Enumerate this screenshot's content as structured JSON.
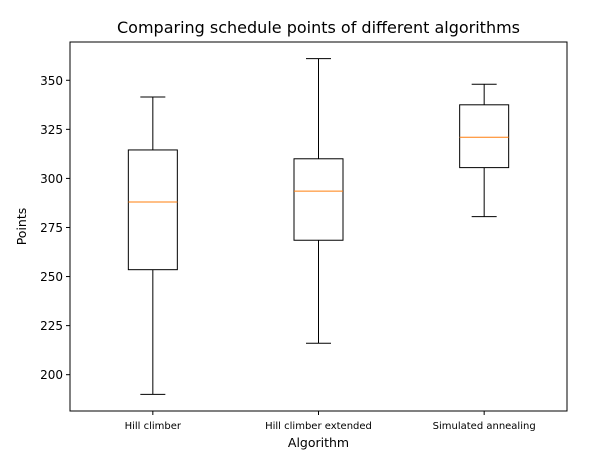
{
  "chart_data": {
    "type": "boxplot",
    "title": "Comparing schedule points of different algorithms",
    "xlabel": "Algorithm",
    "ylabel": "Points",
    "ylim": [
      181.5,
      369.5
    ],
    "yticks": [
      200,
      225,
      250,
      275,
      300,
      325,
      350
    ],
    "grid": false,
    "categories": [
      "Hill climber",
      "Hill climber extended",
      "Simulated annealing"
    ],
    "boxes": [
      {
        "category": "Hill climber",
        "whisker_low": 190,
        "q1": 253.5,
        "median": 288,
        "q3": 314.5,
        "whisker_high": 341.5
      },
      {
        "category": "Hill climber extended",
        "whisker_low": 216,
        "q1": 268.5,
        "median": 293.5,
        "q3": 310,
        "whisker_high": 361
      },
      {
        "category": "Simulated annealing",
        "whisker_low": 280.5,
        "q1": 305.5,
        "median": 321,
        "q3": 337.5,
        "whisker_high": 348
      }
    ],
    "colors": {
      "box": "#000000",
      "median": "#ff7f0e",
      "axes": "#000000"
    }
  }
}
